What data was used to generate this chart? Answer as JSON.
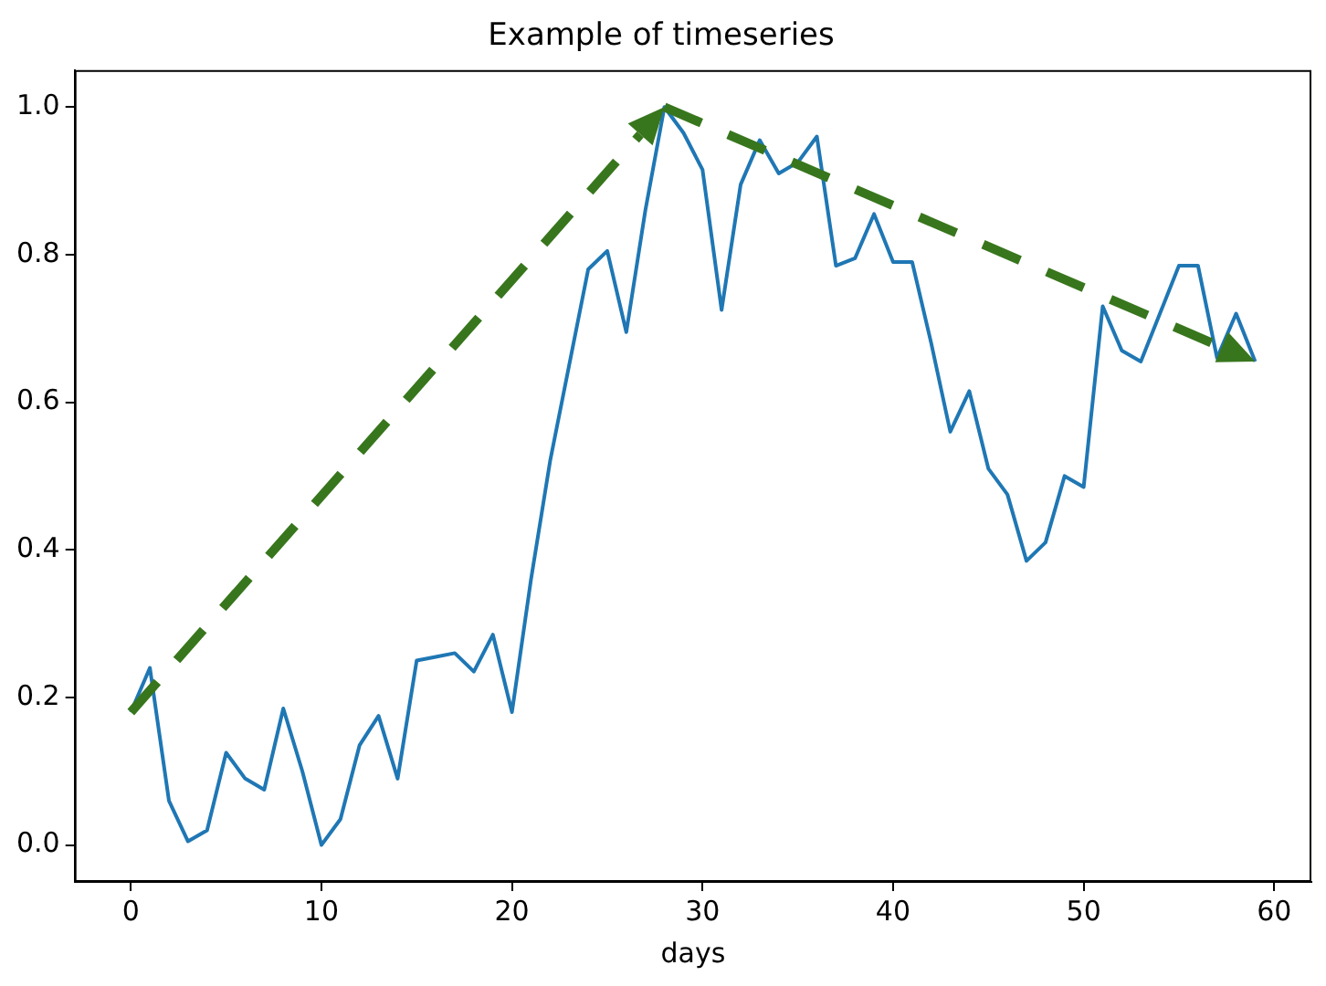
{
  "chart_data": {
    "type": "line",
    "title": "Example of timeseries",
    "xlabel": "days",
    "x": [
      0,
      1,
      2,
      3,
      4,
      5,
      6,
      7,
      8,
      9,
      10,
      11,
      12,
      13,
      14,
      15,
      16,
      17,
      18,
      19,
      20,
      21,
      22,
      23,
      24,
      25,
      26,
      27,
      28,
      29,
      30,
      31,
      32,
      33,
      34,
      35,
      36,
      37,
      38,
      39,
      40,
      41,
      42,
      43,
      44,
      45,
      46,
      47,
      48,
      49,
      50,
      51,
      52,
      53,
      54,
      55,
      56,
      57,
      58,
      59
    ],
    "series": [
      {
        "color": "#1f77b4",
        "values": [
          0.18,
          0.24,
          0.06,
          0.005,
          0.02,
          0.125,
          0.09,
          0.075,
          0.185,
          0.1,
          0.0,
          0.035,
          0.135,
          0.175,
          0.09,
          0.25,
          0.255,
          0.26,
          0.235,
          0.285,
          0.18,
          0.36,
          0.52,
          0.65,
          0.78,
          0.805,
          0.695,
          0.86,
          1.0,
          0.965,
          0.915,
          0.725,
          0.895,
          0.955,
          0.91,
          0.925,
          0.96,
          0.785,
          0.795,
          0.855,
          0.79,
          0.79,
          0.68,
          0.56,
          0.615,
          0.51,
          0.475,
          0.385,
          0.41,
          0.5,
          0.485,
          0.73,
          0.67,
          0.655,
          0.72,
          0.785,
          0.785,
          0.66,
          0.72,
          0.655
        ]
      }
    ],
    "xlim": [
      -2.95,
      61.95
    ],
    "xticks": [
      0,
      10,
      20,
      30,
      40,
      50,
      60
    ],
    "ylim": [
      -0.05,
      1.05
    ],
    "yticks": [
      {
        "value": 0,
        "label": "0.0"
      },
      {
        "value": 0.2,
        "label": "0.2"
      },
      {
        "value": 0.4,
        "label": "0.4"
      },
      {
        "value": 0.6,
        "label": "0.6"
      },
      {
        "value": 0.8,
        "label": "0.8"
      },
      {
        "value": 1,
        "label": "1.0"
      }
    ],
    "grid": false,
    "legend": false,
    "marker": "none",
    "line_style": "solid"
  }
}
